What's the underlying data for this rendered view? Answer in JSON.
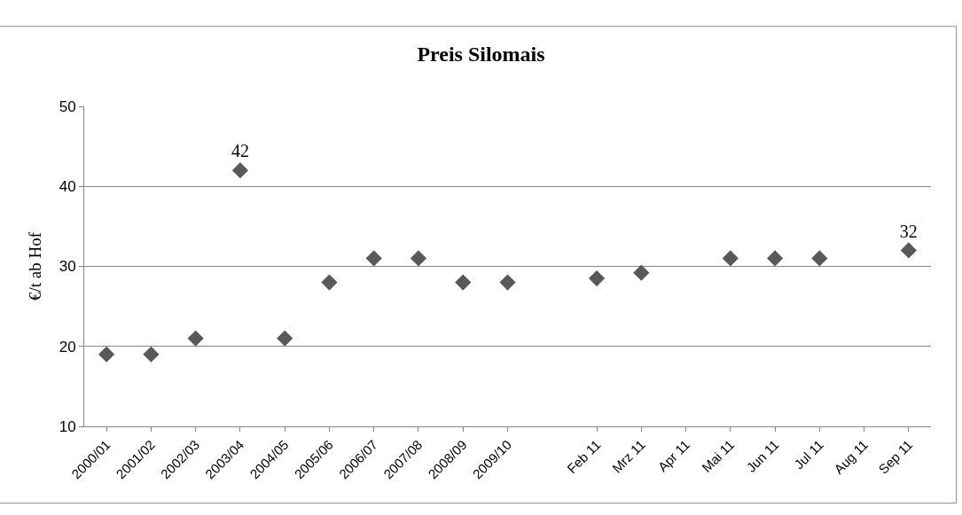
{
  "chart_data": {
    "type": "scatter",
    "title": "Preis Silomais",
    "ylabel": "€/t ab Hof",
    "categories": [
      "2000/01",
      "2001/02",
      "2002/03",
      "2003/04",
      "2004/05",
      "2005/06",
      "2006/07",
      "2007/08",
      "2008/09",
      "2009/10",
      null,
      "Feb 11",
      "Mrz 11",
      "Apr 11",
      "Mai 11",
      "Jun 11",
      "Jul 11",
      "Aug 11",
      "Sep 11"
    ],
    "values": [
      19,
      19,
      21,
      42,
      21,
      28,
      31,
      31,
      28,
      28,
      null,
      28.5,
      29.2,
      null,
      31,
      31,
      31,
      null,
      32
    ],
    "value_labels": [
      null,
      null,
      null,
      "42",
      null,
      null,
      null,
      null,
      null,
      null,
      null,
      null,
      null,
      null,
      null,
      null,
      null,
      null,
      "32"
    ],
    "color": "#595959",
    "marker": "diamond",
    "ylim": [
      10,
      50
    ],
    "yticks": [
      10,
      20,
      30,
      40,
      50
    ],
    "grid": "y",
    "legend": false
  }
}
